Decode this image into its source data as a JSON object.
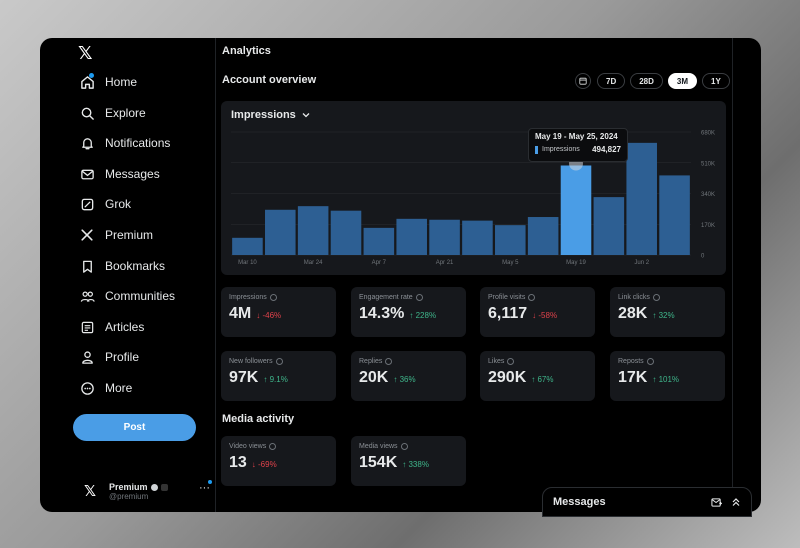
{
  "sidebar": {
    "logo": "𝕏",
    "items": [
      {
        "label": "Home",
        "icon": "home-icon"
      },
      {
        "label": "Explore",
        "icon": "search-icon"
      },
      {
        "label": "Notifications",
        "icon": "bell-icon"
      },
      {
        "label": "Messages",
        "icon": "mail-icon"
      },
      {
        "label": "Grok",
        "icon": "grok-icon"
      },
      {
        "label": "Premium",
        "icon": "x-premium-icon"
      },
      {
        "label": "Bookmarks",
        "icon": "bookmark-icon"
      },
      {
        "label": "Communities",
        "icon": "people-icon"
      },
      {
        "label": "Articles",
        "icon": "article-icon"
      },
      {
        "label": "Profile",
        "icon": "person-icon"
      },
      {
        "label": "More",
        "icon": "more-circle-icon"
      }
    ],
    "post_label": "Post",
    "account": {
      "name": "Premium",
      "handle": "@premium",
      "more": "···"
    }
  },
  "main": {
    "title": "Analytics",
    "overview_title": "Account overview",
    "ranges": [
      "7D",
      "28D",
      "3M",
      "1Y"
    ],
    "active_range": "3M",
    "media_title": "Media activity"
  },
  "chart_data": {
    "type": "bar",
    "title": "Impressions",
    "categories": [
      "Mar 10",
      "Mar 17",
      "Mar 24",
      "Mar 31",
      "Apr 7",
      "Apr 14",
      "Apr 21",
      "Apr 28",
      "May 5",
      "May 12",
      "May 19",
      "May 26",
      "Jun 2",
      "Jun 9"
    ],
    "x_tick_labels": [
      "Mar 10",
      "Mar 24",
      "Apr 7",
      "Apr 21",
      "May 5",
      "May 19",
      "Jun 2"
    ],
    "values": [
      95000,
      250000,
      270000,
      245000,
      150000,
      200000,
      195000,
      190000,
      165000,
      210000,
      494827,
      320000,
      620000,
      440000
    ],
    "y_ticks": [
      "0",
      "170K",
      "340K",
      "510K",
      "680K"
    ],
    "ylim": [
      0,
      680000
    ],
    "highlight_index": 10,
    "tooltip": {
      "title": "May 19 - May 25, 2024",
      "label": "Impressions",
      "value": "494,827"
    },
    "colors": {
      "bar": "#2d5f93",
      "highlight": "#4a9de6"
    },
    "grid": true
  },
  "metrics": [
    {
      "label": "Impressions",
      "value": "4M",
      "delta": "↓ -46%",
      "dir": "down"
    },
    {
      "label": "Engagement rate",
      "value": "14.3%",
      "delta": "↑ 228%",
      "dir": "up"
    },
    {
      "label": "Profile visits",
      "value": "6,117",
      "delta": "↓ -58%",
      "dir": "down"
    },
    {
      "label": "Link clicks",
      "value": "28K",
      "delta": "↑ 32%",
      "dir": "up"
    },
    {
      "label": "New followers",
      "value": "97K",
      "delta": "↑ 9.1%",
      "dir": "up"
    },
    {
      "label": "Replies",
      "value": "20K",
      "delta": "↑ 36%",
      "dir": "up"
    },
    {
      "label": "Likes",
      "value": "290K",
      "delta": "↑ 67%",
      "dir": "up"
    },
    {
      "label": "Reposts",
      "value": "17K",
      "delta": "↑ 101%",
      "dir": "up"
    }
  ],
  "media_metrics": [
    {
      "label": "Video views",
      "value": "13",
      "delta": "↓ -69%",
      "dir": "down"
    },
    {
      "label": "Media views",
      "value": "154K",
      "delta": "↑ 338%",
      "dir": "up"
    }
  ],
  "messages_drawer": {
    "title": "Messages"
  }
}
